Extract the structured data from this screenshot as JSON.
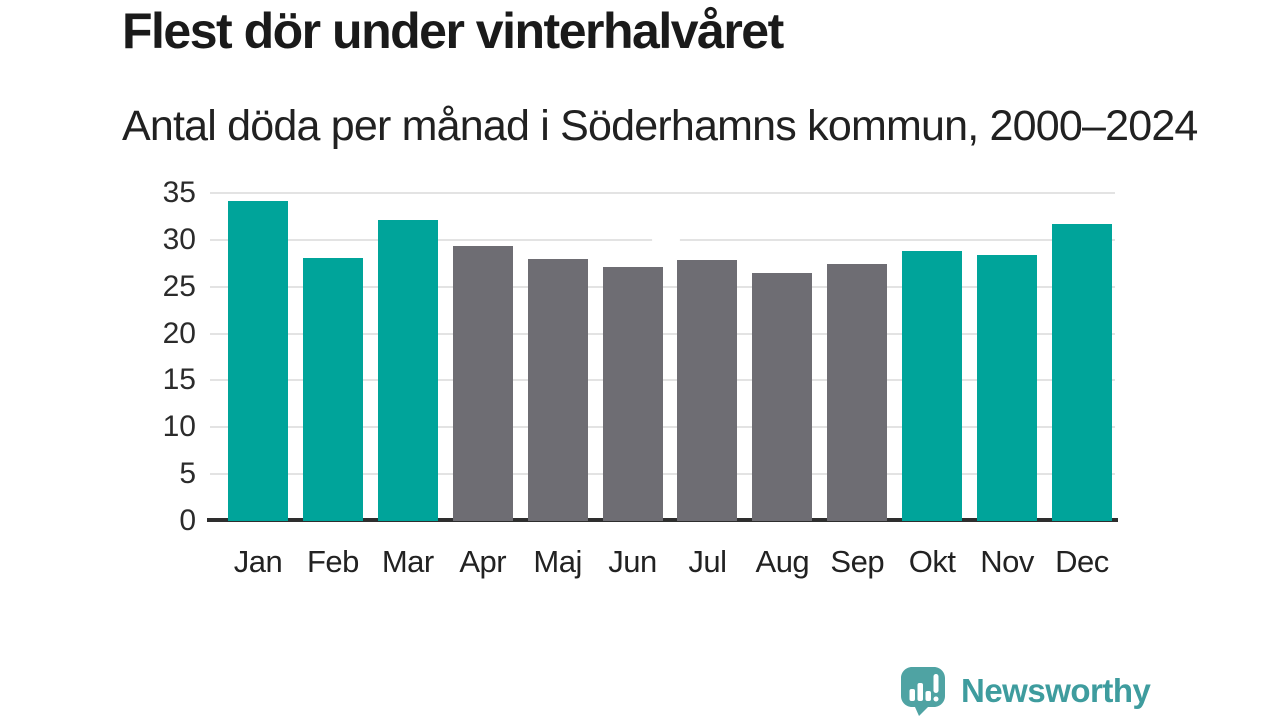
{
  "page": {
    "background": "#FFFFFF"
  },
  "header": {
    "title": "Flest dör under vinterhalvåret",
    "subtitle": "Antal döda per månad i Söderhamns kommun, 2000–2024"
  },
  "chart_data": {
    "type": "bar",
    "title": "Flest dör under vinterhalvåret",
    "subtitle": "Antal döda per månad i Söderhamns kommun, 2000–2024",
    "categories": [
      "Jan",
      "Feb",
      "Mar",
      "Apr",
      "Maj",
      "Jun",
      "Jul",
      "Aug",
      "Sep",
      "Okt",
      "Nov",
      "Dec"
    ],
    "values": [
      34.1,
      28.1,
      32.1,
      29.3,
      28.0,
      27.1,
      27.9,
      26.5,
      27.4,
      28.8,
      28.4,
      31.7
    ],
    "highlighted": [
      true,
      true,
      true,
      false,
      false,
      false,
      false,
      false,
      false,
      true,
      true,
      true
    ],
    "highlight_color": "#00A49A",
    "base_color": "#6E6D73",
    "xlabel": "",
    "ylabel": "",
    "ylim": [
      0,
      35
    ],
    "yticks": [
      0,
      5,
      10,
      15,
      20,
      25,
      30,
      35
    ],
    "grid": "horizontal",
    "gridline_color": "#E3E3E3",
    "axis_color": "#2E2E2E",
    "legend": "none"
  },
  "footer": {
    "brand": "Newsworthy",
    "brand_color": "#3E9C9E",
    "logo_color": "#4FA3A3",
    "logo_icon": "bar-chart-speech-bubble-icon"
  }
}
